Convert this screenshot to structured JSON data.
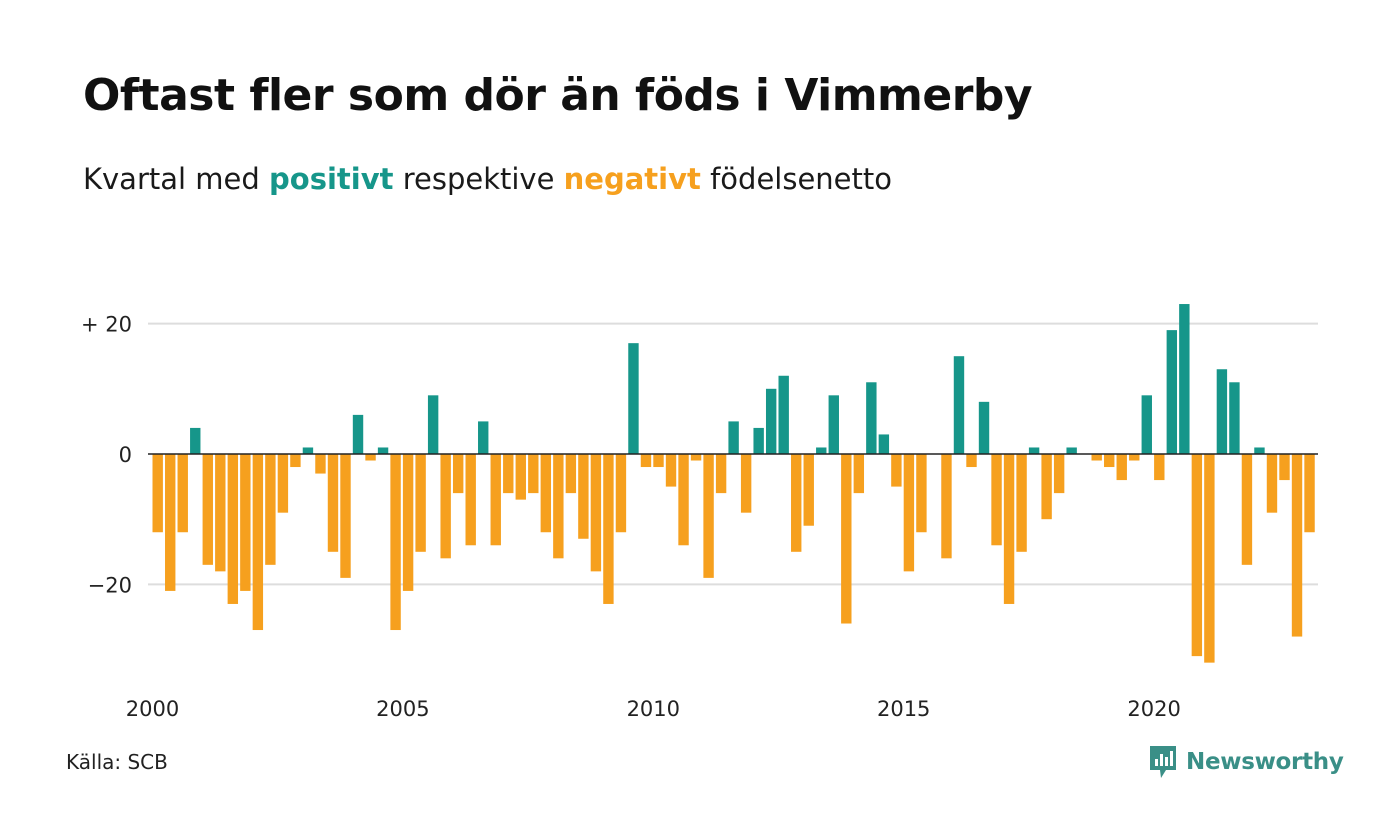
{
  "title": "Oftast fler som dör än föds i Vimmerby",
  "subtitle": {
    "prefix": "Kvartal med ",
    "positive_word": "positivt",
    "middle": " respektive ",
    "negative_word": "negativt",
    "suffix": " födelsenetto"
  },
  "source": "Källa: SCB",
  "brand": "Newsworthy",
  "colors": {
    "positive": "#16968a",
    "negative": "#f6a01e",
    "grid": "#dddddd",
    "zero_line": "#222222"
  },
  "chart_data": {
    "type": "bar",
    "start_year": 2000,
    "x_tick_labels": [
      "2000",
      "2005",
      "2010",
      "2015",
      "2020"
    ],
    "y_tick_labels": [
      {
        "value": 20,
        "label": "+ 20"
      },
      {
        "value": 0,
        "label": "0"
      },
      {
        "value": -20,
        "label": "−20"
      }
    ],
    "ylim": [
      -34,
      26
    ],
    "grid": true,
    "values": [
      -12,
      -21,
      -12,
      4,
      -17,
      -18,
      -23,
      -21,
      -27,
      -17,
      -9,
      -2,
      1,
      -3,
      -15,
      -19,
      6,
      -1,
      1,
      -27,
      -21,
      -15,
      9,
      -16,
      -6,
      -14,
      5,
      -14,
      -6,
      -7,
      -6,
      -12,
      -16,
      -6,
      -13,
      -18,
      -23,
      -12,
      17,
      -2,
      -2,
      -5,
      -14,
      -1,
      -19,
      -6,
      5,
      -9,
      4,
      10,
      12,
      -15,
      -11,
      1,
      9,
      -26,
      -6,
      11,
      3,
      -5,
      -18,
      -12,
      0,
      -16,
      15,
      -2,
      8,
      -14,
      -23,
      -15,
      1,
      -10,
      -6,
      1,
      0,
      -1,
      -2,
      -4,
      -1,
      9,
      -4,
      19,
      23,
      -31,
      -32,
      13,
      11,
      -17,
      1,
      -9,
      -4,
      -28,
      -12
    ]
  }
}
